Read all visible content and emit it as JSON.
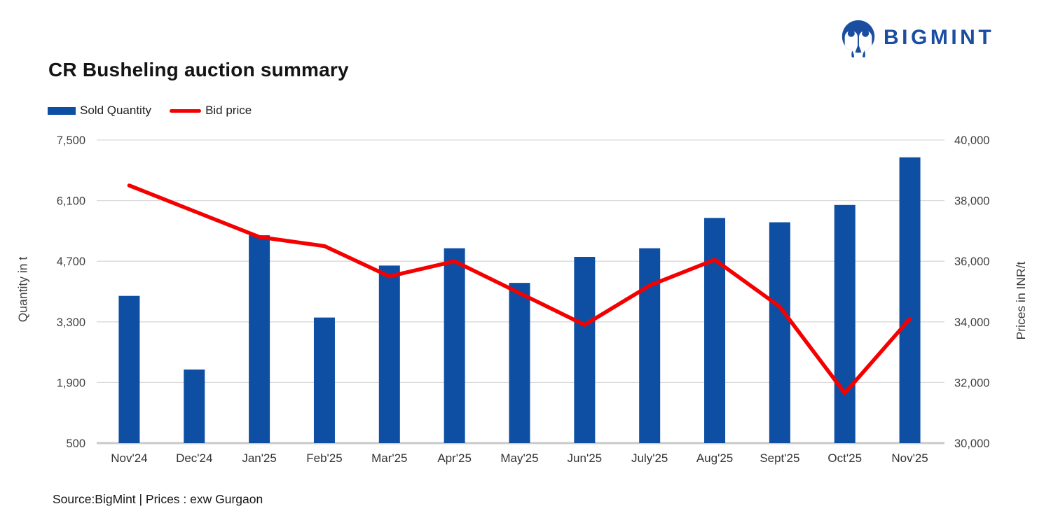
{
  "logo": {
    "text": "BIGMINT"
  },
  "header": {
    "title": "CR Busheling auction summary"
  },
  "footer": {
    "source": "Source:BigMint | Prices : exw Gurgaon"
  },
  "colors": {
    "bar_blue": "#0E4FA3",
    "line_red": "#F40000",
    "logo_navy": "#1B4DA1",
    "gridline": "#D9D9D9",
    "axis_text": "#3F3F3F"
  },
  "chart_data": {
    "type": "bar-line-combo",
    "title": "CR Busheling auction summary",
    "categories": [
      "Nov'24",
      "Dec'24",
      "Jan'25",
      "Feb'25",
      "Mar'25",
      "Apr'25",
      "May'25",
      "Jun'25",
      "July'25",
      "Aug'25",
      "Sept'25",
      "Oct'25",
      "Nov'25"
    ],
    "series": [
      {
        "name": "Sold Quantity",
        "type": "bar",
        "axis": "left",
        "color": "#0E4FA3",
        "values": [
          3900,
          2200,
          5300,
          3400,
          4600,
          5000,
          4200,
          4800,
          5000,
          5700,
          5600,
          6000,
          7100
        ]
      },
      {
        "name": "Bid price",
        "type": "line",
        "axis": "right",
        "color": "#F40000",
        "values": [
          38500,
          37650,
          36800,
          36500,
          35500,
          36000,
          34950,
          33900,
          35200,
          36050,
          34500,
          31650,
          34100
        ]
      }
    ],
    "ylabel_left": "Quantity in t",
    "ylabel_right": "Prices in INR/t",
    "y_left": {
      "min": 500,
      "max": 7500,
      "ticks": [
        7500,
        6100,
        4700,
        3300,
        1900,
        500
      ]
    },
    "y_right": {
      "min": 30000,
      "max": 40000,
      "ticks": [
        40000,
        38000,
        36000,
        34000,
        32000,
        30000
      ]
    },
    "grid": true,
    "legend_position": "top-left"
  }
}
